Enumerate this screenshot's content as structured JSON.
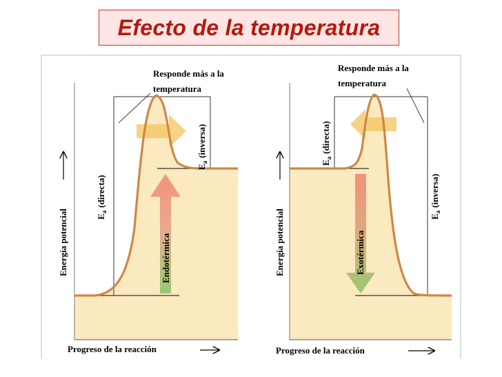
{
  "title": "Efecto de la temperatura",
  "colors": {
    "title_text": "#b8170f",
    "title_bg": "#fde6e3",
    "fill_area": "#fbe9bf",
    "curve": "#d08a43",
    "endo_arrow": "#e9957d",
    "exo_arrow": "#a8c96a",
    "temp_arrow": "#f3c46a"
  },
  "left_panel": {
    "callout": "Responde más a la\ntemperatura",
    "y_axis_label": "Energía potencial",
    "x_axis_label": "Progreso de la reacción",
    "ea_forward_symbol": "E",
    "ea_forward_sub": "a",
    "ea_forward_label": "(directa)",
    "ea_reverse_symbol": "E",
    "ea_reverse_sub": "a",
    "ea_reverse_label": "(inversa)",
    "reaction_label": "Endotérmica",
    "reaction_arrow_icon": "arrow-up-icon",
    "temperature_arrow_icon": "arrow-right-icon"
  },
  "right_panel": {
    "callout": "Responde más a la\ntemperatura",
    "y_axis_label": "Energía potencial",
    "x_axis_label": "Progreso de la reacción",
    "ea_forward_symbol": "E",
    "ea_forward_sub": "a",
    "ea_forward_label": "(directa)",
    "ea_reverse_symbol": "E",
    "ea_reverse_sub": "a",
    "ea_reverse_label": "(inversa)",
    "reaction_label": "Exotérmica",
    "reaction_arrow_icon": "arrow-down-icon",
    "temperature_arrow_icon": "arrow-left-icon"
  }
}
